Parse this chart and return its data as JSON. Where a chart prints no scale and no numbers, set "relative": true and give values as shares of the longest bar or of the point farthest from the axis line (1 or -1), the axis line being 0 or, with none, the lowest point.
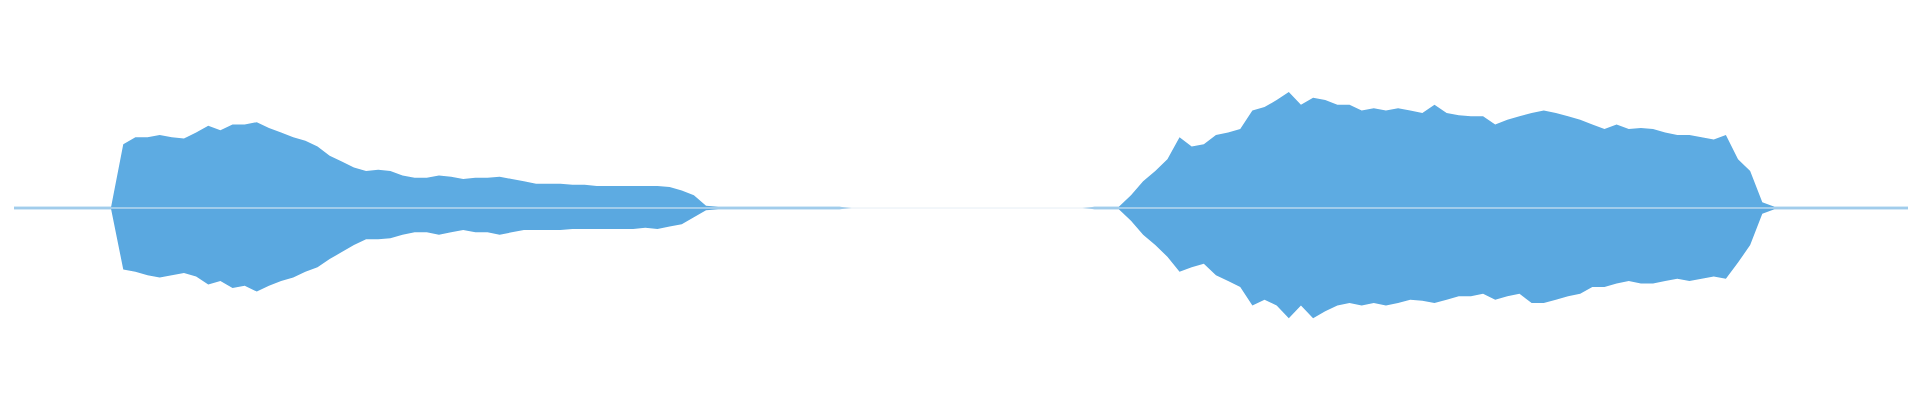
{
  "chart_data": {
    "type": "area",
    "relative": true,
    "categories": [
      null,
      null,
      null,
      null,
      null,
      null,
      null,
      null,
      null,
      null,
      null,
      null,
      null,
      null,
      null,
      null,
      null,
      null,
      null,
      null,
      null,
      null,
      null,
      null,
      null,
      null,
      null,
      null,
      null,
      null,
      null,
      null,
      null,
      null,
      null,
      null,
      null,
      null,
      null,
      null,
      null,
      null,
      null,
      null,
      null,
      null,
      null,
      null,
      null,
      null,
      null,
      null,
      null,
      null,
      null,
      null,
      null,
      null,
      null,
      null,
      null,
      null,
      null,
      null,
      null,
      null,
      null,
      null,
      null,
      null,
      null,
      null,
      null,
      null,
      null,
      null,
      null,
      null,
      null,
      null,
      null,
      null,
      null,
      null,
      null,
      null,
      null,
      null,
      null,
      null,
      null,
      null,
      null,
      null,
      null,
      null,
      null,
      null,
      null,
      null,
      null,
      null,
      null,
      null,
      null,
      null,
      null,
      null,
      null,
      null,
      null,
      null,
      null,
      null,
      null,
      null,
      null,
      null,
      null,
      null,
      null,
      null,
      null,
      null,
      null,
      null,
      null,
      null,
      null,
      null,
      null,
      null,
      null,
      null,
      null,
      null,
      null,
      null,
      null,
      null,
      null,
      null,
      null,
      null,
      null,
      null,
      null,
      null,
      null,
      null,
      null,
      null,
      null,
      null,
      null,
      null,
      null
    ],
    "series": [
      {
        "color": "#5dabe2",
        "values": [
          0.01,
          0.01,
          0.01,
          0.01,
          0.01,
          0.01,
          0.01,
          0.01,
          0.01,
          0.55,
          0.61,
          0.61,
          0.63,
          0.61,
          0.6,
          0.65,
          0.71,
          0.67,
          0.72,
          0.72,
          0.74,
          0.69,
          0.65,
          0.61,
          0.58,
          0.53,
          0.45,
          0.4,
          0.35,
          0.32,
          0.33,
          0.32,
          0.28,
          0.26,
          0.26,
          0.28,
          0.27,
          0.25,
          0.26,
          0.26,
          0.27,
          0.25,
          0.23,
          0.21,
          0.21,
          0.21,
          0.2,
          0.2,
          0.19,
          0.19,
          0.19,
          0.19,
          0.19,
          0.19,
          0.18,
          0.15,
          0.11,
          0.02,
          0.01,
          0.01,
          0.01,
          0.01,
          0.01,
          0.01,
          0.01,
          0.01,
          0.01,
          0.01,
          0.01,
          0,
          0,
          0,
          0,
          0,
          0,
          0,
          0,
          0,
          0,
          0,
          0,
          0,
          0,
          0,
          0,
          0,
          0,
          0,
          0,
          0.01,
          0.01,
          0.01,
          0.11,
          0.23,
          0.32,
          0.42,
          0.61,
          0.53,
          0.55,
          0.63,
          0.65,
          0.68,
          0.84,
          0.87,
          0.93,
          1,
          0.89,
          0.95,
          0.93,
          0.89,
          0.89,
          0.84,
          0.86,
          0.84,
          0.86,
          0.84,
          0.82,
          0.89,
          0.82,
          0.8,
          0.79,
          0.79,
          0.72,
          0.76,
          0.79,
          0.82,
          0.84,
          0.82,
          0.79,
          0.76,
          0.72,
          0.68,
          0.72,
          0.68,
          0.69,
          0.68,
          0.65,
          0.63,
          0.63,
          0.61,
          0.59,
          0.63,
          0.42,
          0.32,
          0.05,
          0.01,
          0.01,
          0.01,
          0.01,
          0.01,
          0.01,
          0.01,
          0.01,
          0.01,
          0.01,
          0.01,
          0.01
        ]
      },
      {
        "color": "#5aa8e0",
        "values": [
          -0.01,
          -0.01,
          -0.01,
          -0.01,
          -0.01,
          -0.01,
          -0.01,
          -0.01,
          -0.01,
          -0.53,
          -0.55,
          -0.58,
          -0.6,
          -0.58,
          -0.56,
          -0.59,
          -0.66,
          -0.63,
          -0.69,
          -0.67,
          -0.72,
          -0.67,
          -0.63,
          -0.6,
          -0.55,
          -0.51,
          -0.44,
          -0.38,
          -0.32,
          -0.27,
          -0.27,
          -0.26,
          -0.23,
          -0.21,
          -0.21,
          -0.23,
          -0.21,
          -0.19,
          -0.21,
          -0.21,
          -0.23,
          -0.21,
          -0.19,
          -0.19,
          -0.19,
          -0.19,
          -0.18,
          -0.18,
          -0.18,
          -0.18,
          -0.18,
          -0.18,
          -0.17,
          -0.18,
          -0.16,
          -0.14,
          -0.08,
          -0.02,
          -0.01,
          -0.01,
          -0.01,
          -0.01,
          -0.01,
          -0.01,
          -0.01,
          -0.01,
          -0.01,
          -0.01,
          -0.01,
          0,
          0,
          0,
          0,
          0,
          0,
          0,
          0,
          0,
          0,
          0,
          0,
          0,
          0,
          0,
          0,
          0,
          0,
          0,
          0,
          -0.01,
          -0.01,
          -0.01,
          -0.11,
          -0.23,
          -0.32,
          -0.42,
          -0.55,
          -0.51,
          -0.48,
          -0.58,
          -0.63,
          -0.68,
          -0.84,
          -0.79,
          -0.84,
          -0.95,
          -0.84,
          -0.95,
          -0.89,
          -0.84,
          -0.82,
          -0.84,
          -0.82,
          -0.84,
          -0.82,
          -0.79,
          -0.8,
          -0.82,
          -0.79,
          -0.76,
          -0.76,
          -0.74,
          -0.79,
          -0.76,
          -0.74,
          -0.82,
          -0.82,
          -0.79,
          -0.76,
          -0.74,
          -0.68,
          -0.68,
          -0.65,
          -0.63,
          -0.65,
          -0.65,
          -0.63,
          -0.61,
          -0.63,
          -0.61,
          -0.59,
          -0.61,
          -0.47,
          -0.32,
          -0.05,
          -0.01,
          -0.01,
          -0.01,
          -0.01,
          -0.01,
          -0.01,
          -0.01,
          -0.01,
          -0.01,
          -0.01,
          -0.01,
          -0.01
        ]
      }
    ]
  }
}
